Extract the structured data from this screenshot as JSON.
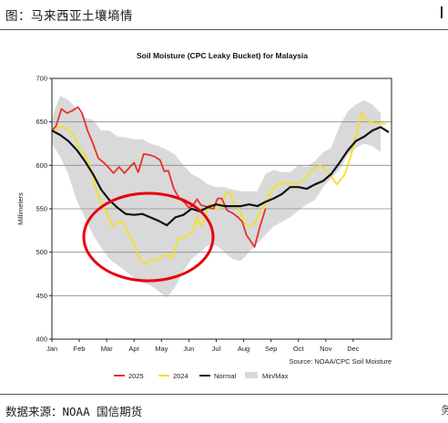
{
  "figure": {
    "title": "图：马来西亚土壤墒情",
    "source": "数据来源：NOAA 国信期货",
    "corner_text": "务"
  },
  "colors": {
    "y2025": "#e8312a",
    "y2024": "#f5e022",
    "normal": "#111111",
    "minmax": "#d9d9d9"
  },
  "chart_data": {
    "type": "line",
    "title": "Soil Moisture (CPC Leaky Bucket) for Malaysia",
    "xlabel": "",
    "ylabel": "Millimeters",
    "ylim": [
      400,
      700
    ],
    "yticks": [
      400,
      450,
      500,
      550,
      600,
      650,
      700
    ],
    "xlim": [
      0,
      12.4
    ],
    "xticks": [
      {
        "label": "Jan",
        "pos": 0
      },
      {
        "label": "Feb",
        "pos": 1
      },
      {
        "label": "Mar",
        "pos": 2
      },
      {
        "label": "Apr",
        "pos": 3
      },
      {
        "label": "May",
        "pos": 4
      },
      {
        "label": "Jun",
        "pos": 5
      },
      {
        "label": "Jul",
        "pos": 6
      },
      {
        "label": "Aug",
        "pos": 7
      },
      {
        "label": "Sep",
        "pos": 8
      },
      {
        "label": "Oct",
        "pos": 9
      },
      {
        "label": "Nov",
        "pos": 10
      },
      {
        "label": "Dec",
        "pos": 11
      }
    ],
    "grid": true,
    "legend": "bottom",
    "annotation": "Source: NOAA/CPC Soil Moisture",
    "band": {
      "name": "Min/Max",
      "x": [
        0,
        0.3,
        0.6,
        0.9,
        1.2,
        1.5,
        1.8,
        2.1,
        2.4,
        2.7,
        3.0,
        3.3,
        3.6,
        3.9,
        4.2,
        4.5,
        4.8,
        5.1,
        5.4,
        5.7,
        6.0,
        6.3,
        6.6,
        6.9,
        7.2,
        7.5,
        7.8,
        8.1,
        8.4,
        8.7,
        9.0,
        9.3,
        9.6,
        9.9,
        10.2,
        10.5,
        10.8,
        11.1,
        11.4,
        11.7,
        12.0
      ],
      "max": [
        655,
        680,
        675,
        665,
        655,
        652,
        640,
        640,
        633,
        632,
        630,
        630,
        625,
        622,
        618,
        612,
        600,
        590,
        585,
        578,
        575,
        575,
        572,
        570,
        570,
        570,
        590,
        595,
        592,
        592,
        600,
        598,
        605,
        615,
        620,
        645,
        662,
        670,
        675,
        670,
        660
      ],
      "min": [
        625,
        610,
        590,
        560,
        540,
        520,
        505,
        492,
        485,
        478,
        470,
        465,
        462,
        455,
        448,
        460,
        478,
        492,
        500,
        508,
        508,
        500,
        492,
        490,
        500,
        510,
        520,
        530,
        535,
        540,
        548,
        555,
        560,
        575,
        585,
        595,
        612,
        620,
        625,
        622,
        615
      ]
    },
    "series": [
      {
        "name": "2025",
        "x": [
          0,
          0.15,
          0.35,
          0.55,
          0.75,
          0.95,
          1.1,
          1.3,
          1.5,
          1.7,
          1.9,
          2.05,
          2.25,
          2.45,
          2.65,
          2.85,
          3.0,
          3.15,
          3.35,
          3.55,
          3.75,
          3.95,
          4.1,
          4.25,
          4.45,
          4.65,
          4.85,
          5.0,
          5.15,
          5.3,
          5.45,
          5.6,
          5.75,
          5.9,
          6.05,
          6.2,
          6.4,
          6.6,
          6.8,
          6.95,
          7.1,
          7.25,
          7.4,
          7.6,
          7.8
        ],
        "values": [
          640,
          645,
          665,
          660,
          663,
          667,
          660,
          640,
          625,
          608,
          603,
          598,
          591,
          598,
          591,
          598,
          603,
          592,
          613,
          612,
          610,
          606,
          593,
          594,
          573,
          562,
          557,
          551,
          554,
          561,
          554,
          553,
          551,
          550,
          562,
          562,
          548,
          545,
          540,
          535,
          520,
          513,
          506,
          530,
          550
        ]
      },
      {
        "name": "2024",
        "x": [
          0,
          0.2,
          0.4,
          0.6,
          0.8,
          1.0,
          1.2,
          1.4,
          1.6,
          1.8,
          2.0,
          2.2,
          2.4,
          2.6,
          2.8,
          3.0,
          3.2,
          3.4,
          3.6,
          3.8,
          4.0,
          4.2,
          4.4,
          4.6,
          4.8,
          5.0,
          5.15,
          5.3,
          5.45,
          5.6,
          5.75,
          5.9,
          6.05,
          6.2,
          6.35,
          6.5,
          6.65,
          6.8,
          6.95,
          7.1,
          7.25,
          7.4,
          7.6,
          7.8,
          8.0,
          8.3,
          8.6,
          8.9,
          9.2,
          9.5,
          9.8,
          10.1,
          10.4,
          10.7,
          11.0,
          11.3,
          11.6,
          11.9,
          12.2
        ],
        "values": [
          640,
          643,
          645,
          640,
          635,
          620,
          612,
          598,
          575,
          555,
          545,
          530,
          535,
          534,
          520,
          510,
          492,
          486,
          492,
          490,
          495,
          497,
          494,
          515,
          517,
          520,
          524,
          540,
          530,
          542,
          555,
          553,
          549,
          555,
          567,
          570,
          555,
          552,
          540,
          532,
          530,
          534,
          546,
          555,
          570,
          580,
          580,
          578,
          583,
          595,
          600,
          592,
          578,
          590,
          620,
          660,
          650,
          648,
          648
        ]
      },
      {
        "name": "Normal",
        "x": [
          0,
          0.3,
          0.6,
          0.9,
          1.2,
          1.5,
          1.8,
          2.1,
          2.4,
          2.7,
          3.0,
          3.3,
          3.6,
          3.9,
          4.2,
          4.5,
          4.8,
          5.1,
          5.4,
          5.7,
          6.0,
          6.3,
          6.6,
          6.9,
          7.2,
          7.5,
          7.8,
          8.1,
          8.4,
          8.7,
          9.0,
          9.3,
          9.6,
          9.9,
          10.2,
          10.5,
          10.8,
          11.1,
          11.4,
          11.7,
          12.0,
          12.3
        ],
        "values": [
          640,
          635,
          628,
          618,
          605,
          590,
          572,
          560,
          551,
          544,
          543,
          544,
          540,
          536,
          531,
          540,
          543,
          550,
          547,
          552,
          555,
          553,
          553,
          553,
          555,
          553,
          558,
          562,
          567,
          575,
          575,
          573,
          578,
          582,
          590,
          603,
          617,
          628,
          633,
          640,
          644,
          638
        ]
      }
    ],
    "legend_entries": [
      {
        "label": "2025",
        "kind": "line",
        "color": "#e8312a"
      },
      {
        "label": "2024",
        "kind": "line",
        "color": "#f5e022"
      },
      {
        "label": "Normal",
        "kind": "line",
        "color": "#111111"
      },
      {
        "label": "Min/Max",
        "kind": "band",
        "color": "#d9d9d9"
      }
    ]
  }
}
